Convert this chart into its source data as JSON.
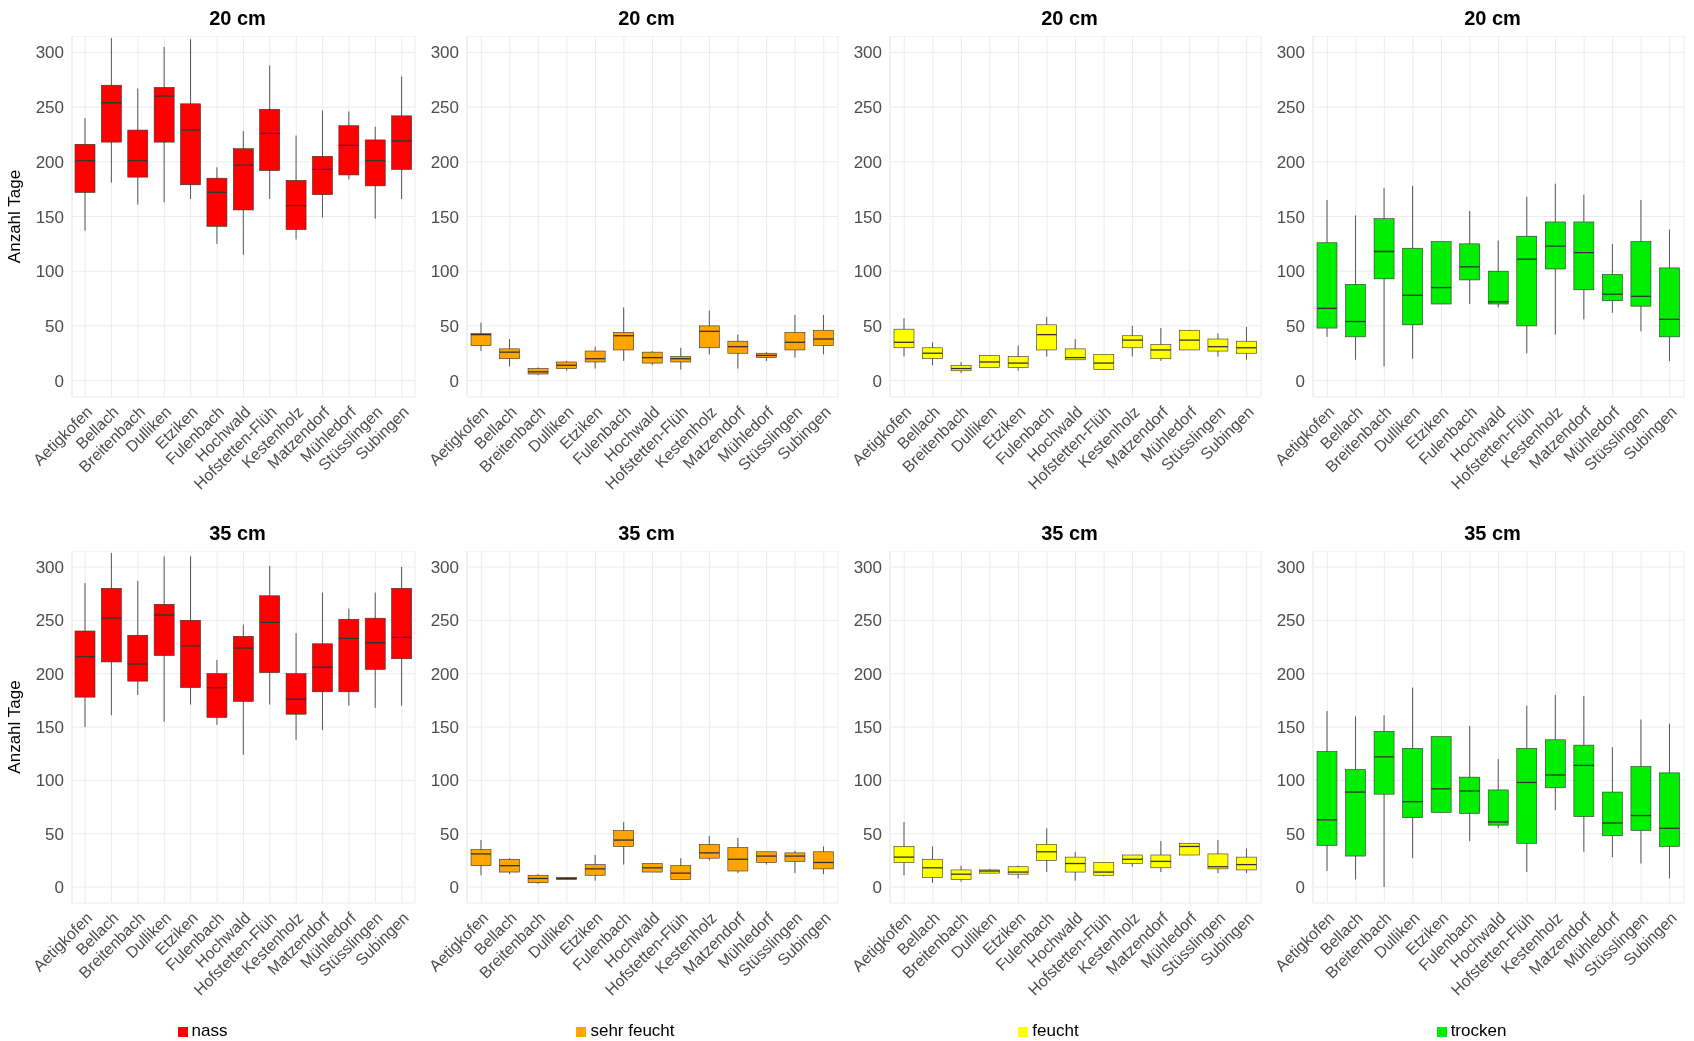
{
  "chart_data": [
    {
      "type": "box",
      "title": "20 cm",
      "ylabel": "Anzahl Tage",
      "categories": [
        "Aetigkofen",
        "Bellach",
        "Breitenbach",
        "Dulliken",
        "Etziken",
        "Fulenbach",
        "Hochwald",
        "Hofstetten-Flüh",
        "Kestenholz",
        "Matzendorf",
        "Mühledorf",
        "Stüsslingen",
        "Subingen"
      ],
      "ylim": [
        -15,
        315
      ],
      "yticks": [
        0,
        50,
        100,
        150,
        200,
        250,
        300
      ],
      "grid": true,
      "legend": false,
      "series": [
        {
          "color": "#ff0000",
          "boxes": [
            {
              "low": 137,
              "q1": 172,
              "median": 201,
              "q3": 216,
              "high": 240
            },
            {
              "low": 181,
              "q1": 218,
              "median": 254,
              "q3": 270,
              "high": 313
            },
            {
              "low": 161,
              "q1": 186,
              "median": 201,
              "q3": 229,
              "high": 267
            },
            {
              "low": 163,
              "q1": 218,
              "median": 260,
              "q3": 268,
              "high": 305
            },
            {
              "low": 166,
              "q1": 179,
              "median": 229,
              "q3": 253,
              "high": 312
            },
            {
              "low": 125,
              "q1": 141,
              "median": 172,
              "q3": 185,
              "high": 195
            },
            {
              "low": 115,
              "q1": 156,
              "median": 197,
              "q3": 212,
              "high": 228
            },
            {
              "low": 166,
              "q1": 192,
              "median": 226,
              "q3": 248,
              "high": 288
            },
            {
              "low": 129,
              "q1": 138,
              "median": 160,
              "q3": 183,
              "high": 224
            },
            {
              "low": 149,
              "q1": 170,
              "median": 193,
              "q3": 205,
              "high": 247
            },
            {
              "low": 184,
              "q1": 188,
              "median": 215,
              "q3": 233,
              "high": 246
            },
            {
              "low": 148,
              "q1": 178,
              "median": 201,
              "q3": 220,
              "high": 232
            },
            {
              "low": 166,
              "q1": 193,
              "median": 219,
              "q3": 242,
              "high": 278
            }
          ]
        }
      ]
    },
    {
      "type": "box",
      "title": "20 cm",
      "categories": [
        "Aetigkofen",
        "Bellach",
        "Breitenbach",
        "Dulliken",
        "Etziken",
        "Fulenbach",
        "Hochwald",
        "Hofstetten-Flüh",
        "Kestenholz",
        "Matzendorf",
        "Mühledorf",
        "Stüsslingen",
        "Subingen"
      ],
      "ylim": [
        -15,
        315
      ],
      "yticks": [
        0,
        50,
        100,
        150,
        200,
        250,
        300
      ],
      "grid": true,
      "legend": false,
      "series": [
        {
          "color": "#ffa500",
          "boxes": [
            {
              "low": 27,
              "q1": 32,
              "median": 42,
              "q3": 43,
              "high": 53
            },
            {
              "low": 13,
              "q1": 20,
              "median": 26,
              "q3": 29,
              "high": 38
            },
            {
              "low": 5,
              "q1": 6,
              "median": 8,
              "q3": 11,
              "high": 12
            },
            {
              "low": 9,
              "q1": 11,
              "median": 14,
              "q3": 17,
              "high": 18
            },
            {
              "low": 11,
              "q1": 17,
              "median": 20,
              "q3": 27,
              "high": 31
            },
            {
              "low": 18,
              "q1": 28,
              "median": 41,
              "q3": 44,
              "high": 67
            },
            {
              "low": 14,
              "q1": 16,
              "median": 21,
              "q3": 26,
              "high": 27
            },
            {
              "low": 10,
              "q1": 17,
              "median": 20,
              "q3": 22,
              "high": 30
            },
            {
              "low": 24,
              "q1": 30,
              "median": 45,
              "q3": 50,
              "high": 64
            },
            {
              "low": 11,
              "q1": 25,
              "median": 31,
              "q3": 36,
              "high": 42
            },
            {
              "low": 18,
              "q1": 21,
              "median": 23,
              "q3": 25,
              "high": 26
            },
            {
              "low": 21,
              "q1": 28,
              "median": 35,
              "q3": 44,
              "high": 60
            },
            {
              "low": 24,
              "q1": 32,
              "median": 38,
              "q3": 46,
              "high": 60
            }
          ]
        }
      ]
    },
    {
      "type": "box",
      "title": "20 cm",
      "categories": [
        "Aetigkofen",
        "Bellach",
        "Breitenbach",
        "Dulliken",
        "Etziken",
        "Fulenbach",
        "Hochwald",
        "Hofstetten-Flüh",
        "Kestenholz",
        "Matzendorf",
        "Mühledorf",
        "Stüsslingen",
        "Subingen"
      ],
      "ylim": [
        -15,
        315
      ],
      "yticks": [
        0,
        50,
        100,
        150,
        200,
        250,
        300
      ],
      "grid": true,
      "legend": false,
      "series": [
        {
          "color": "#ffff00",
          "boxes": [
            {
              "low": 22,
              "q1": 30,
              "median": 35,
              "q3": 47,
              "high": 57
            },
            {
              "low": 14,
              "q1": 20,
              "median": 25,
              "q3": 30,
              "high": 35
            },
            {
              "low": 7,
              "q1": 9,
              "median": 11,
              "q3": 14,
              "high": 17
            },
            {
              "low": 12,
              "q1": 12,
              "median": 17,
              "q3": 23,
              "high": 23
            },
            {
              "low": 9,
              "q1": 12,
              "median": 16,
              "q3": 22,
              "high": 32
            },
            {
              "low": 22,
              "q1": 28,
              "median": 42,
              "q3": 51,
              "high": 58
            },
            {
              "low": 19,
              "q1": 19,
              "median": 21,
              "q3": 29,
              "high": 38
            },
            {
              "low": 10,
              "q1": 10,
              "median": 16,
              "q3": 24,
              "high": 24
            },
            {
              "low": 22,
              "q1": 30,
              "median": 37,
              "q3": 41,
              "high": 50
            },
            {
              "low": 18,
              "q1": 20,
              "median": 28,
              "q3": 33,
              "high": 48
            },
            {
              "low": 28,
              "q1": 28,
              "median": 37,
              "q3": 46,
              "high": 46
            },
            {
              "low": 22,
              "q1": 27,
              "median": 31,
              "q3": 38,
              "high": 43
            },
            {
              "low": 19,
              "q1": 25,
              "median": 30,
              "q3": 36,
              "high": 49
            }
          ]
        }
      ]
    },
    {
      "type": "box",
      "title": "20 cm",
      "categories": [
        "Aetigkofen",
        "Bellach",
        "Breitenbach",
        "Dulliken",
        "Etziken",
        "Fulenbach",
        "Hochwald",
        "Hofstetten-Flüh",
        "Kestenholz",
        "Matzendorf",
        "Mühledorf",
        "Stüsslingen",
        "Subingen"
      ],
      "ylim": [
        -15,
        315
      ],
      "yticks": [
        0,
        50,
        100,
        150,
        200,
        250,
        300
      ],
      "grid": true,
      "legend": false,
      "series": [
        {
          "color": "#00ee00",
          "boxes": [
            {
              "low": 40,
              "q1": 48,
              "median": 66,
              "q3": 126,
              "high": 165
            },
            {
              "low": 19,
              "q1": 40,
              "median": 54,
              "q3": 88,
              "high": 151
            },
            {
              "low": 13,
              "q1": 93,
              "median": 118,
              "q3": 148,
              "high": 176
            },
            {
              "low": 20,
              "q1": 51,
              "median": 78,
              "q3": 121,
              "high": 178
            },
            {
              "low": 70,
              "q1": 70,
              "median": 85,
              "q3": 127,
              "high": 127
            },
            {
              "low": 70,
              "q1": 92,
              "median": 104,
              "q3": 125,
              "high": 155
            },
            {
              "low": 67,
              "q1": 70,
              "median": 72,
              "q3": 100,
              "high": 128
            },
            {
              "low": 25,
              "q1": 50,
              "median": 111,
              "q3": 132,
              "high": 168
            },
            {
              "low": 42,
              "q1": 102,
              "median": 123,
              "q3": 145,
              "high": 180
            },
            {
              "low": 56,
              "q1": 83,
              "median": 117,
              "q3": 145,
              "high": 170
            },
            {
              "low": 62,
              "q1": 73,
              "median": 79,
              "q3": 97,
              "high": 125
            },
            {
              "low": 45,
              "q1": 68,
              "median": 77,
              "q3": 127,
              "high": 165
            },
            {
              "low": 18,
              "q1": 40,
              "median": 56,
              "q3": 103,
              "high": 138
            }
          ]
        }
      ]
    },
    {
      "type": "box",
      "title": "35 cm",
      "ylabel": "Anzahl Tage",
      "categories": [
        "Aetigkofen",
        "Bellach",
        "Breitenbach",
        "Dulliken",
        "Etziken",
        "Fulenbach",
        "Hochwald",
        "Hofstetten-Flüh",
        "Kestenholz",
        "Matzendorf",
        "Mühledorf",
        "Stüsslingen",
        "Subingen"
      ],
      "ylim": [
        -15,
        315
      ],
      "yticks": [
        0,
        50,
        100,
        150,
        200,
        250,
        300
      ],
      "grid": true,
      "legend": "bottom",
      "series": [
        {
          "name": "nass",
          "color": "#ff0000",
          "boxes": [
            {
              "low": 150,
              "q1": 178,
              "median": 216,
              "q3": 240,
              "high": 285
            },
            {
              "low": 161,
              "q1": 211,
              "median": 252,
              "q3": 280,
              "high": 313
            },
            {
              "low": 180,
              "q1": 193,
              "median": 209,
              "q3": 236,
              "high": 287
            },
            {
              "low": 155,
              "q1": 217,
              "median": 255,
              "q3": 265,
              "high": 310
            },
            {
              "low": 171,
              "q1": 187,
              "median": 226,
              "q3": 250,
              "high": 310
            },
            {
              "low": 152,
              "q1": 159,
              "median": 187,
              "q3": 200,
              "high": 213
            },
            {
              "low": 124,
              "q1": 174,
              "median": 224,
              "q3": 235,
              "high": 246
            },
            {
              "low": 171,
              "q1": 201,
              "median": 248,
              "q3": 273,
              "high": 301
            },
            {
              "low": 138,
              "q1": 162,
              "median": 176,
              "q3": 200,
              "high": 238
            },
            {
              "low": 147,
              "q1": 183,
              "median": 206,
              "q3": 228,
              "high": 276
            },
            {
              "low": 170,
              "q1": 183,
              "median": 233,
              "q3": 251,
              "high": 261
            },
            {
              "low": 168,
              "q1": 204,
              "median": 229,
              "q3": 252,
              "high": 276
            },
            {
              "low": 170,
              "q1": 214,
              "median": 234,
              "q3": 280,
              "high": 300
            }
          ]
        }
      ]
    },
    {
      "type": "box",
      "title": "35 cm",
      "categories": [
        "Aetigkofen",
        "Bellach",
        "Breitenbach",
        "Dulliken",
        "Etziken",
        "Fulenbach",
        "Hochwald",
        "Hofstetten-Flüh",
        "Kestenholz",
        "Matzendorf",
        "Mühledorf",
        "Stüsslingen",
        "Subingen"
      ],
      "ylim": [
        -15,
        315
      ],
      "yticks": [
        0,
        50,
        100,
        150,
        200,
        250,
        300
      ],
      "grid": true,
      "legend": "bottom",
      "series": [
        {
          "name": "sehr feucht",
          "color": "#ffa500",
          "boxes": [
            {
              "low": 11,
              "q1": 20,
              "median": 31,
              "q3": 35,
              "high": 44
            },
            {
              "low": 12,
              "q1": 14,
              "median": 20,
              "q3": 26,
              "high": 27
            },
            {
              "low": 3,
              "q1": 4,
              "median": 8,
              "q3": 11,
              "high": 12
            },
            {
              "low": 7,
              "q1": 7,
              "median": 8,
              "q3": 9,
              "high": 9
            },
            {
              "low": 6,
              "q1": 11,
              "median": 17,
              "q3": 21,
              "high": 30
            },
            {
              "low": 21,
              "q1": 38,
              "median": 44,
              "q3": 53,
              "high": 61
            },
            {
              "low": 14,
              "q1": 14,
              "median": 18,
              "q3": 22,
              "high": 22
            },
            {
              "low": 7,
              "q1": 7,
              "median": 13,
              "q3": 20,
              "high": 27
            },
            {
              "low": 25,
              "q1": 27,
              "median": 32,
              "q3": 40,
              "high": 48
            },
            {
              "low": 13,
              "q1": 15,
              "median": 26,
              "q3": 37,
              "high": 46
            },
            {
              "low": 21,
              "q1": 23,
              "median": 29,
              "q3": 33,
              "high": 33
            },
            {
              "low": 13,
              "q1": 24,
              "median": 29,
              "q3": 32,
              "high": 34
            },
            {
              "low": 12,
              "q1": 17,
              "median": 23,
              "q3": 33,
              "high": 38
            }
          ]
        }
      ]
    },
    {
      "type": "box",
      "title": "35 cm",
      "categories": [
        "Aetigkofen",
        "Bellach",
        "Breitenbach",
        "Dulliken",
        "Etziken",
        "Fulenbach",
        "Hochwald",
        "Hofstetten-Flüh",
        "Kestenholz",
        "Matzendorf",
        "Mühledorf",
        "Stüsslingen",
        "Subingen"
      ],
      "ylim": [
        -15,
        315
      ],
      "yticks": [
        0,
        50,
        100,
        150,
        200,
        250,
        300
      ],
      "grid": true,
      "legend": "bottom",
      "series": [
        {
          "name": "feucht",
          "color": "#ffff00",
          "boxes": [
            {
              "low": 11,
              "q1": 23,
              "median": 28,
              "q3": 38,
              "high": 61
            },
            {
              "low": 4,
              "q1": 9,
              "median": 18,
              "q3": 26,
              "high": 38
            },
            {
              "low": 5,
              "q1": 7,
              "median": 12,
              "q3": 16,
              "high": 20
            },
            {
              "low": 13,
              "q1": 13,
              "median": 15,
              "q3": 16,
              "high": 17
            },
            {
              "low": 8,
              "q1": 12,
              "median": 14,
              "q3": 19,
              "high": 20
            },
            {
              "low": 14,
              "q1": 25,
              "median": 33,
              "q3": 40,
              "high": 55
            },
            {
              "low": 6,
              "q1": 14,
              "median": 22,
              "q3": 28,
              "high": 33
            },
            {
              "low": 10,
              "q1": 11,
              "median": 14,
              "q3": 23,
              "high": 23
            },
            {
              "low": 19,
              "q1": 22,
              "median": 26,
              "q3": 30,
              "high": 30
            },
            {
              "low": 14,
              "q1": 18,
              "median": 24,
              "q3": 30,
              "high": 43
            },
            {
              "low": 30,
              "q1": 30,
              "median": 38,
              "q3": 41,
              "high": 41
            },
            {
              "low": 13,
              "q1": 17,
              "median": 19,
              "q3": 31,
              "high": 44
            },
            {
              "low": 13,
              "q1": 16,
              "median": 21,
              "q3": 28,
              "high": 36
            }
          ]
        }
      ]
    },
    {
      "type": "box",
      "title": "35 cm",
      "categories": [
        "Aetigkofen",
        "Bellach",
        "Breitenbach",
        "Dulliken",
        "Etziken",
        "Fulenbach",
        "Hochwald",
        "Hofstetten-Flüh",
        "Kestenholz",
        "Matzendorf",
        "Mühledorf",
        "Stüsslingen",
        "Subingen"
      ],
      "ylim": [
        -15,
        315
      ],
      "yticks": [
        0,
        50,
        100,
        150,
        200,
        250,
        300
      ],
      "grid": true,
      "legend": "bottom",
      "series": [
        {
          "name": "trocken",
          "color": "#00ee00",
          "boxes": [
            {
              "low": 15,
              "q1": 39,
              "median": 63,
              "q3": 127,
              "high": 165
            },
            {
              "low": 7,
              "q1": 29,
              "median": 89,
              "q3": 110,
              "high": 160
            },
            {
              "low": 0,
              "q1": 87,
              "median": 122,
              "q3": 146,
              "high": 161
            },
            {
              "low": 27,
              "q1": 65,
              "median": 80,
              "q3": 130,
              "high": 187
            },
            {
              "low": 70,
              "q1": 70,
              "median": 92,
              "q3": 141,
              "high": 141
            },
            {
              "low": 43,
              "q1": 69,
              "median": 90,
              "q3": 103,
              "high": 151
            },
            {
              "low": 55,
              "q1": 58,
              "median": 61,
              "q3": 91,
              "high": 120
            },
            {
              "low": 14,
              "q1": 41,
              "median": 98,
              "q3": 130,
              "high": 170
            },
            {
              "low": 72,
              "q1": 93,
              "median": 105,
              "q3": 138,
              "high": 180
            },
            {
              "low": 33,
              "q1": 66,
              "median": 114,
              "q3": 133,
              "high": 179
            },
            {
              "low": 28,
              "q1": 48,
              "median": 60,
              "q3": 89,
              "high": 131
            },
            {
              "low": 22,
              "q1": 53,
              "median": 67,
              "q3": 113,
              "high": 157
            },
            {
              "low": 8,
              "q1": 38,
              "median": 55,
              "q3": 107,
              "high": 153
            }
          ]
        }
      ]
    }
  ]
}
